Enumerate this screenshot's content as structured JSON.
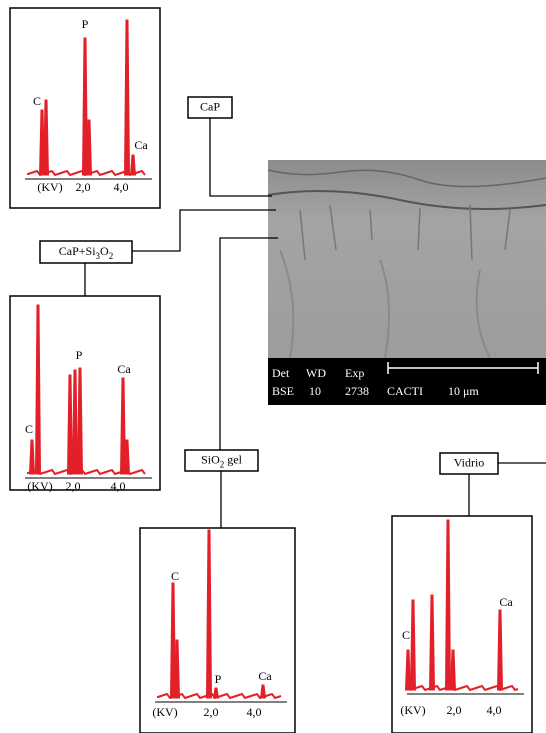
{
  "spectra": [
    {
      "label": [
        "CaP"
      ],
      "peaks": [
        "C",
        "P",
        "Ca"
      ],
      "axis": [
        "(KV)",
        "2,0",
        "4,0"
      ]
    },
    {
      "label": [
        "CaP+Si",
        "3",
        "O",
        "2"
      ],
      "peaks": [
        "C",
        "P",
        "Ca"
      ],
      "axis": [
        "(KV)",
        "2,0",
        "4,0"
      ]
    },
    {
      "label": [
        "SiO",
        "2",
        " gel"
      ],
      "peaks": [
        "C",
        "P",
        "Ca"
      ],
      "axis": [
        "(KV)",
        "2,0",
        "4,0"
      ]
    },
    {
      "label": [
        "Vidrio"
      ],
      "peaks": [
        "C",
        "Ca"
      ],
      "axis": [
        "(KV)",
        "2,0",
        "4,0"
      ]
    }
  ],
  "image": {
    "row1": [
      "Det",
      "WD",
      "Exp"
    ],
    "row2": [
      "BSE",
      "10",
      "2738",
      "CACTI",
      "10 μm"
    ]
  }
}
